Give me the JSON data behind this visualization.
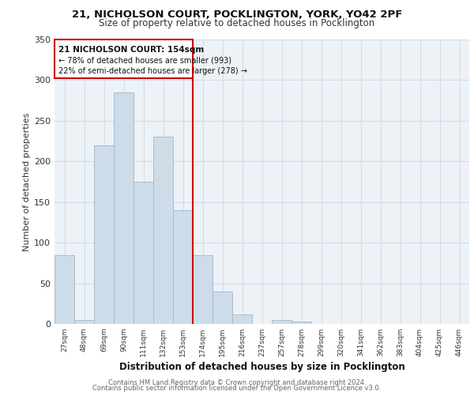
{
  "title_line1": "21, NICHOLSON COURT, POCKLINGTON, YORK, YO42 2PF",
  "title_line2": "Size of property relative to detached houses in Pocklington",
  "xlabel": "Distribution of detached houses by size in Pocklington",
  "ylabel": "Number of detached properties",
  "footer_line1": "Contains HM Land Registry data © Crown copyright and database right 2024.",
  "footer_line2": "Contains public sector information licensed under the Open Government Licence v3.0.",
  "bar_color": "#ccdce8",
  "bar_edge_color": "#aabccc",
  "grid_color": "#d4dce8",
  "background_color": "#edf2f7",
  "annotation_box_color": "#ffffff",
  "annotation_box_edge": "#cc0000",
  "vertical_line_color": "#cc0000",
  "categories": [
    "27sqm",
    "48sqm",
    "69sqm",
    "90sqm",
    "111sqm",
    "132sqm",
    "153sqm",
    "174sqm",
    "195sqm",
    "216sqm",
    "237sqm",
    "257sqm",
    "278sqm",
    "299sqm",
    "320sqm",
    "341sqm",
    "362sqm",
    "383sqm",
    "404sqm",
    "425sqm",
    "446sqm"
  ],
  "values": [
    85,
    5,
    220,
    285,
    175,
    230,
    140,
    85,
    40,
    12,
    0,
    5,
    3,
    0,
    0,
    0,
    0,
    0,
    0,
    0,
    0
  ],
  "ylim": [
    0,
    350
  ],
  "property_line_idx": 6,
  "annotation_text_line1": "21 NICHOLSON COURT: 154sqm",
  "annotation_text_line2": "← 78% of detached houses are smaller (993)",
  "annotation_text_line3": "22% of semi-detached houses are larger (278) →",
  "bar_width": 1.0
}
